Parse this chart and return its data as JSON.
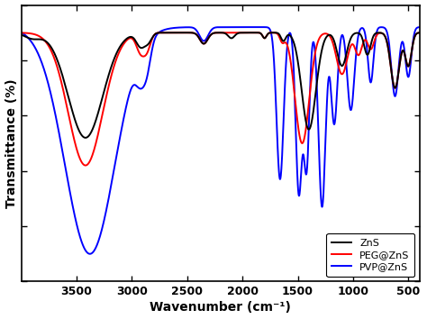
{
  "xlabel": "Wavenumber (cm⁻¹)",
  "ylabel": "Transmittance (%)",
  "xlim": [
    4000,
    400
  ],
  "ylim": [
    0,
    100
  ],
  "legend": [
    "ZnS",
    "PEG@ZnS",
    "PVP@ZnS"
  ],
  "colors": [
    "black",
    "red",
    "blue"
  ],
  "linewidth": 1.4,
  "xticks": [
    3500,
    3000,
    2500,
    2000,
    1500,
    1000,
    500
  ]
}
